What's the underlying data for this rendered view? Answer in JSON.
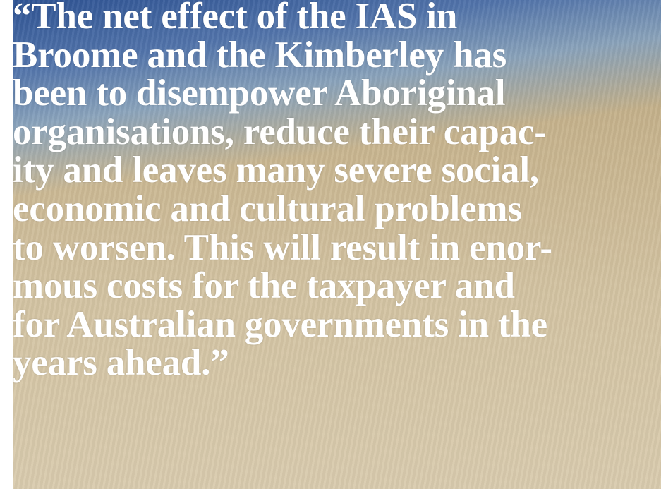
{
  "quote": {
    "lines": [
      "“The net effect of the IAS in",
      "Broome and the Kimberley has",
      "been to disempower Aboriginal",
      "organisations, reduce their capac-",
      "ity and leaves many severe social,",
      "economic and cultural problems",
      "to worsen. This will result in enor-",
      "mous costs for the taxpayer and",
      "for Australian governments in the",
      "years ahead.”"
    ]
  }
}
